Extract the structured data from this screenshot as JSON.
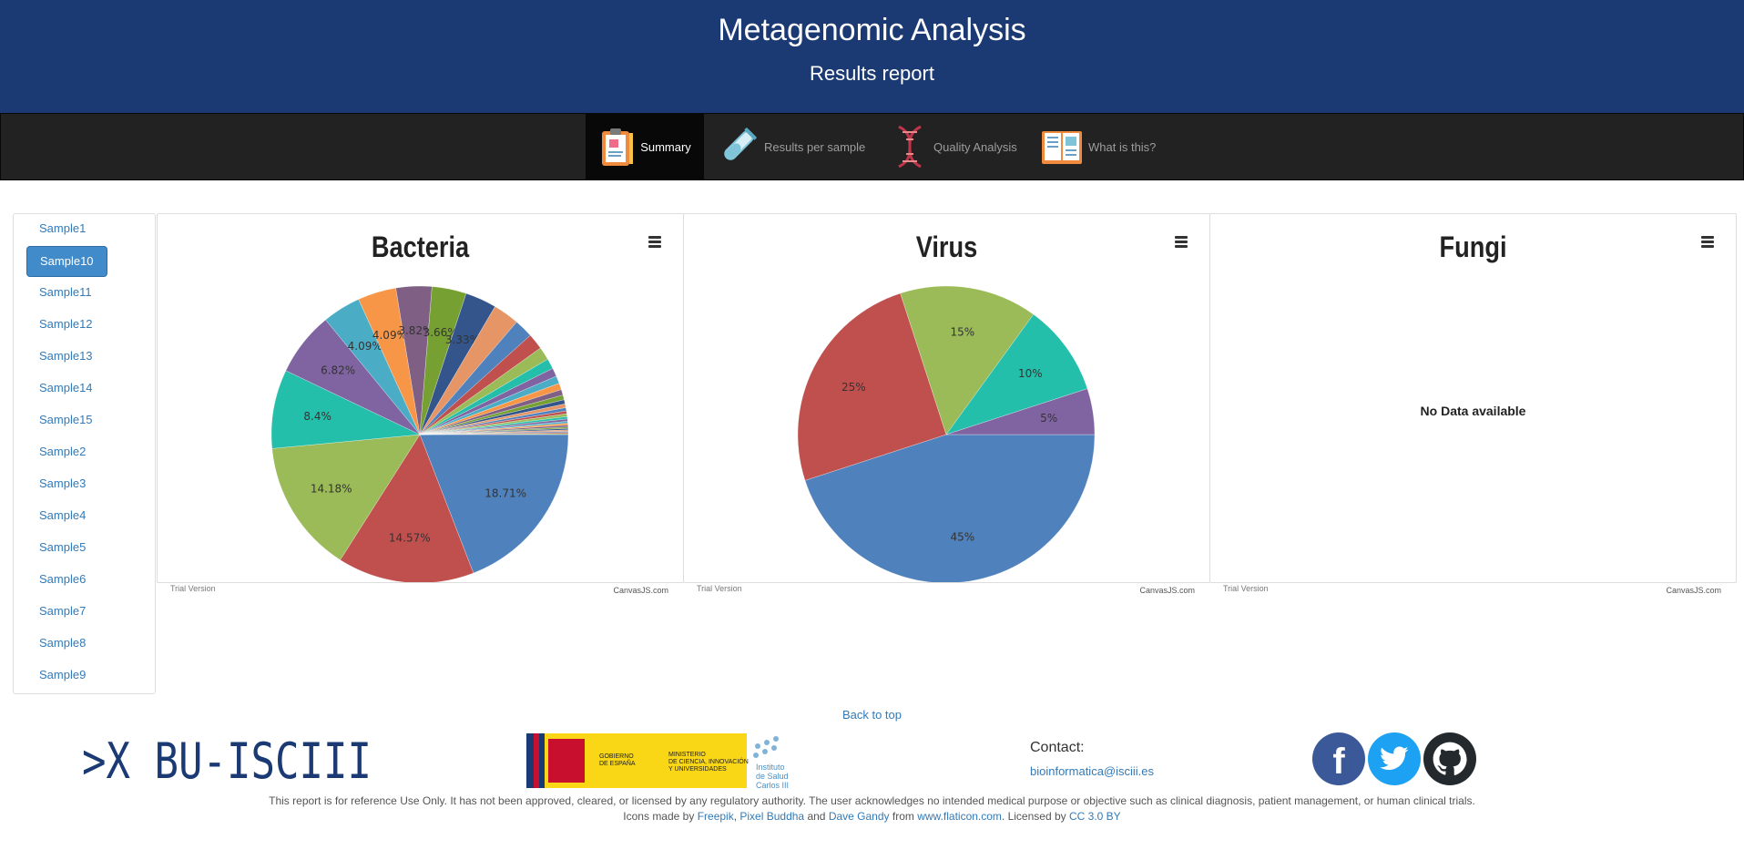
{
  "header": {
    "title": "Metagenomic Analysis",
    "subtitle": "Results report"
  },
  "nav": [
    {
      "label": "Summary",
      "icon": "clipboard-icon",
      "active": true
    },
    {
      "label": "Results per sample",
      "icon": "test-tube-icon",
      "active": false
    },
    {
      "label": "Quality Analysis",
      "icon": "dna-icon",
      "active": false
    },
    {
      "label": "What is this?",
      "icon": "book-icon",
      "active": false
    }
  ],
  "sidebar": {
    "items": [
      "Sample1",
      "Sample10",
      "Sample11",
      "Sample12",
      "Sample13",
      "Sample14",
      "Sample15",
      "Sample2",
      "Sample3",
      "Sample4",
      "Sample5",
      "Sample6",
      "Sample7",
      "Sample8",
      "Sample9"
    ],
    "active": "Sample10"
  },
  "charts_meta": {
    "trial": "Trial Version",
    "credit": "CanvasJS.com",
    "no_data": "No Data available"
  },
  "chart_data": [
    {
      "type": "pie",
      "title": "Bacteria",
      "slices": [
        {
          "label": "18.71%",
          "value": 18.71,
          "color": "#4f81bc"
        },
        {
          "label": "14.57%",
          "value": 14.57,
          "color": "#c0504e"
        },
        {
          "label": "14.18%",
          "value": 14.18,
          "color": "#9bbb58"
        },
        {
          "label": "8.4%",
          "value": 8.4,
          "color": "#23bfaa"
        },
        {
          "label": "6.82%",
          "value": 6.82,
          "color": "#8064a1"
        },
        {
          "label": "4.09%",
          "value": 4.09,
          "color": "#4aacc5"
        },
        {
          "label": "4.09%",
          "value": 4.09,
          "color": "#f79647"
        },
        {
          "label": "3.82%",
          "value": 3.82,
          "color": "#7f6084"
        },
        {
          "label": "3.66%",
          "value": 3.66,
          "color": "#77a033"
        },
        {
          "label": "3.33%",
          "value": 3.33,
          "color": "#33558b"
        },
        {
          "value": 2.8,
          "color": "#e59566"
        },
        {
          "value": 2.0,
          "color": "#4f81bc"
        },
        {
          "value": 1.7,
          "color": "#c0504e"
        },
        {
          "value": 1.4,
          "color": "#9bbb58"
        },
        {
          "value": 1.1,
          "color": "#23bfaa"
        },
        {
          "value": 0.9,
          "color": "#8064a1"
        },
        {
          "value": 0.8,
          "color": "#4aacc5"
        },
        {
          "value": 0.7,
          "color": "#f79647"
        },
        {
          "value": 0.6,
          "color": "#7f6084"
        },
        {
          "value": 0.5,
          "color": "#77a033"
        },
        {
          "value": 0.45,
          "color": "#33558b"
        },
        {
          "value": 0.4,
          "color": "#e59566"
        },
        {
          "value": 0.35,
          "color": "#4f81bc"
        },
        {
          "value": 0.3,
          "color": "#c0504e"
        },
        {
          "value": 0.3,
          "color": "#9bbb58"
        },
        {
          "value": 0.25,
          "color": "#23bfaa"
        },
        {
          "value": 0.25,
          "color": "#8064a1"
        },
        {
          "value": 0.2,
          "color": "#4aacc5"
        },
        {
          "value": 0.2,
          "color": "#f79647"
        },
        {
          "value": 0.2,
          "color": "#7f6084"
        },
        {
          "value": 0.15,
          "color": "#77a033"
        },
        {
          "value": 0.15,
          "color": "#33558b"
        },
        {
          "value": 0.15,
          "color": "#e59566"
        },
        {
          "value": 0.12,
          "color": "#4f81bc"
        },
        {
          "value": 0.12,
          "color": "#c0504e"
        },
        {
          "value": 0.1,
          "color": "#9bbb58"
        }
      ]
    },
    {
      "type": "pie",
      "title": "Virus",
      "slices": [
        {
          "label": "45%",
          "value": 45,
          "color": "#4f81bc"
        },
        {
          "label": "25%",
          "value": 25,
          "color": "#c0504e"
        },
        {
          "label": "15%",
          "value": 15,
          "color": "#9bbb58"
        },
        {
          "label": "10%",
          "value": 10,
          "color": "#23bfaa"
        },
        {
          "label": "5%",
          "value": 5,
          "color": "#8064a1"
        }
      ]
    },
    {
      "type": "pie",
      "title": "Fungi",
      "slices": []
    }
  ],
  "footer": {
    "back_to_top": "Back to top",
    "logo_text": ">X_BU-ISCIII",
    "gov_text_1": "GOBIERNO",
    "gov_text_2": "DE ESPAÑA",
    "ministry_1": "MINISTERIO",
    "ministry_2": "DE CIENCIA, INNOVACIÓN",
    "ministry_3": "Y UNIVERSIDADES",
    "isciii_1": "Instituto",
    "isciii_2": "de Salud",
    "isciii_3": "Carlos III",
    "contact_label": "Contact:",
    "contact_email": "bioinformatica@isciii.es",
    "disclaimer": "This report is for reference Use Only. It has not been approved, cleared, or licensed by any regulatory authority. The user acknowledges no intended medical purpose or objective such as clinical diagnosis, patient management, or human clinical trials.",
    "icons_prefix": "Icons made by",
    "author1": "Freepik",
    "sep1": ",",
    "author2": "Pixel Buddha",
    "and": "and",
    "author3": "Dave Gandy",
    "from": "from",
    "site": "www.flaticon.com",
    "licensed": ". Licensed by",
    "license": "CC 3.0 BY"
  }
}
